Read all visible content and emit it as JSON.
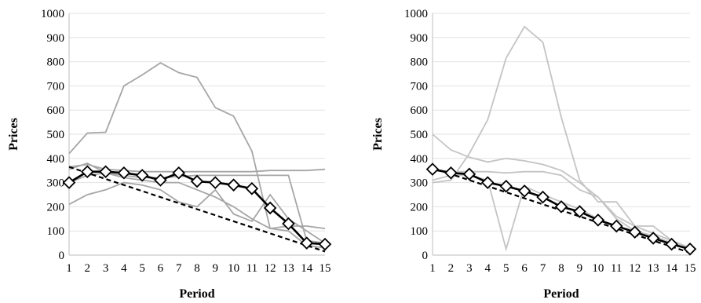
{
  "chart_data": [
    {
      "type": "line",
      "title": "",
      "xlabel": "Period",
      "ylabel": "Prices",
      "x": [
        1,
        2,
        3,
        4,
        5,
        6,
        7,
        8,
        9,
        10,
        11,
        12,
        13,
        14,
        15
      ],
      "xlim": [
        1,
        15
      ],
      "ylim": [
        0,
        1000
      ],
      "yticks": [
        0,
        100,
        200,
        300,
        400,
        500,
        600,
        700,
        800,
        900,
        1000
      ],
      "grid": true,
      "legend": "none",
      "colors": {
        "group": "#a6a6a6",
        "mean": "#000000",
        "benchmark": "#000000"
      },
      "series": [
        {
          "role": "group",
          "values": [
            420,
            505,
            508,
            700,
            745,
            795,
            755,
            735,
            610,
            575,
            430,
            110,
            100,
            40,
            30
          ]
        },
        {
          "role": "group",
          "values": [
            365,
            375,
            355,
            350,
            345,
            345,
            345,
            345,
            345,
            345,
            345,
            350,
            350,
            350,
            355
          ]
        },
        {
          "role": "group",
          "values": [
            300,
            330,
            340,
            330,
            320,
            320,
            325,
            330,
            330,
            330,
            330,
            330,
            330,
            60,
            50
          ]
        },
        {
          "role": "group",
          "values": [
            355,
            380,
            340,
            320,
            310,
            300,
            300,
            270,
            240,
            200,
            150,
            110,
            120,
            120,
            110
          ]
        },
        {
          "role": "group",
          "values": [
            210,
            250,
            270,
            300,
            290,
            270,
            220,
            200,
            270,
            170,
            140,
            250,
            150,
            100,
            50
          ]
        },
        {
          "role": "mean",
          "values": [
            300,
            345,
            345,
            340,
            330,
            310,
            340,
            305,
            300,
            290,
            275,
            195,
            130,
            50,
            45
          ]
        },
        {
          "role": "benchmark",
          "values": [
            365,
            340,
            315,
            290,
            265,
            240,
            215,
            190,
            165,
            140,
            115,
            90,
            65,
            40,
            15
          ]
        }
      ]
    },
    {
      "type": "line",
      "title": "",
      "xlabel": "Period",
      "ylabel": "Prices",
      "x": [
        1,
        2,
        3,
        4,
        5,
        6,
        7,
        8,
        9,
        10,
        11,
        12,
        13,
        14,
        15
      ],
      "xlim": [
        1,
        15
      ],
      "ylim": [
        0,
        1000
      ],
      "yticks": [
        0,
        100,
        200,
        300,
        400,
        500,
        600,
        700,
        800,
        900,
        1000
      ],
      "grid": true,
      "legend": "none",
      "colors": {
        "group": "#c4c4c4",
        "mean": "#000000",
        "benchmark": "#000000"
      },
      "series": [
        {
          "role": "group",
          "values": [
            300,
            310,
            420,
            560,
            815,
            945,
            880,
            570,
            310,
            220,
            220,
            120,
            120,
            60,
            30
          ]
        },
        {
          "role": "group",
          "values": [
            500,
            435,
            405,
            385,
            400,
            390,
            375,
            350,
            300,
            240,
            150,
            100,
            80,
            50,
            30
          ]
        },
        {
          "role": "group",
          "values": [
            355,
            345,
            345,
            345,
            340,
            345,
            345,
            330,
            270,
            240,
            160,
            120,
            90,
            60,
            30
          ]
        },
        {
          "role": "group",
          "values": [
            310,
            330,
            330,
            310,
            25,
            285,
            250,
            220,
            190,
            150,
            120,
            100,
            80,
            50,
            30
          ]
        },
        {
          "role": "mean",
          "values": [
            355,
            340,
            335,
            300,
            285,
            265,
            240,
            200,
            180,
            145,
            120,
            95,
            70,
            45,
            25
          ]
        },
        {
          "role": "benchmark",
          "values": [
            360,
            335,
            310,
            285,
            260,
            235,
            210,
            185,
            160,
            135,
            110,
            85,
            60,
            35,
            10
          ]
        }
      ]
    }
  ]
}
